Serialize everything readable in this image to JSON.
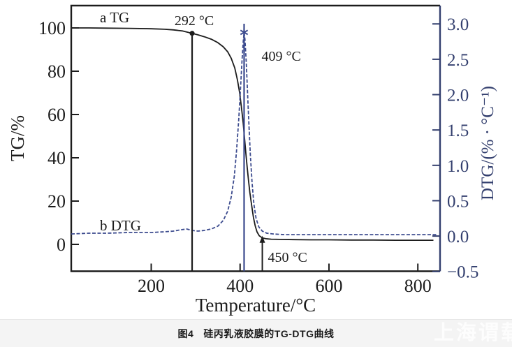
{
  "chart_data": {
    "type": "line",
    "title": "",
    "xlabel": "Temperature/°C",
    "ylabel_left": "TG/%",
    "ylabel_right": "DTG/(% · °C⁻¹)",
    "x_ticks": [
      200,
      400,
      600,
      800
    ],
    "y_left_ticks": [
      0,
      20,
      40,
      60,
      80,
      100
    ],
    "y_right_ticks": [
      -0.5,
      0.0,
      0.5,
      1.0,
      1.5,
      2.0,
      2.5,
      3.0
    ],
    "x_range": [
      20,
      850
    ],
    "y_left_range": [
      0,
      100
    ],
    "y_right_range": [
      -0.5,
      3.0
    ],
    "grid": false,
    "legend_position": "none",
    "series": [
      {
        "name": "a TG",
        "axis": "left",
        "color": "#1c1c1c",
        "dashed": false,
        "points": [
          [
            20,
            100
          ],
          [
            60,
            100
          ],
          [
            100,
            99.9
          ],
          [
            150,
            99.8
          ],
          [
            200,
            99.6
          ],
          [
            230,
            99.4
          ],
          [
            250,
            99.1
          ],
          [
            270,
            98.6
          ],
          [
            292,
            97.5
          ],
          [
            305,
            96.8
          ],
          [
            320,
            95.9
          ],
          [
            335,
            94.8
          ],
          [
            350,
            93.2
          ],
          [
            362,
            91.3
          ],
          [
            372,
            89
          ],
          [
            380,
            86
          ],
          [
            388,
            81.5
          ],
          [
            394,
            76
          ],
          [
            399,
            70
          ],
          [
            403,
            63.5
          ],
          [
            407,
            56
          ],
          [
            410,
            49
          ],
          [
            413,
            42
          ],
          [
            416,
            35.5
          ],
          [
            419,
            29.5
          ],
          [
            422,
            24
          ],
          [
            426,
            18
          ],
          [
            430,
            12.5
          ],
          [
            434,
            8.5
          ],
          [
            438,
            5.8
          ],
          [
            443,
            4
          ],
          [
            450,
            3
          ],
          [
            458,
            2.6
          ],
          [
            470,
            2.4
          ],
          [
            490,
            2.3
          ],
          [
            520,
            2.2
          ],
          [
            560,
            2.1
          ],
          [
            600,
            2.1
          ],
          [
            650,
            2
          ],
          [
            700,
            2
          ],
          [
            750,
            1.9
          ],
          [
            835,
            1.9
          ]
        ]
      },
      {
        "name": "b DTG",
        "axis": "right",
        "color": "#3c4b8e",
        "dashed": true,
        "points": [
          [
            20,
            0.03
          ],
          [
            60,
            0.04
          ],
          [
            100,
            0.04
          ],
          [
            150,
            0.05
          ],
          [
            200,
            0.05
          ],
          [
            230,
            0.06
          ],
          [
            250,
            0.07
          ],
          [
            268,
            0.09
          ],
          [
            280,
            0.1
          ],
          [
            292,
            0.08
          ],
          [
            305,
            0.07
          ],
          [
            320,
            0.08
          ],
          [
            335,
            0.1
          ],
          [
            350,
            0.14
          ],
          [
            362,
            0.22
          ],
          [
            372,
            0.35
          ],
          [
            380,
            0.55
          ],
          [
            387,
            0.85
          ],
          [
            392,
            1.2
          ],
          [
            397,
            1.65
          ],
          [
            401,
            2.1
          ],
          [
            404,
            2.45
          ],
          [
            407,
            2.75
          ],
          [
            409,
            2.88
          ],
          [
            411,
            2.78
          ],
          [
            414,
            2.45
          ],
          [
            417,
            2.0
          ],
          [
            420,
            1.55
          ],
          [
            423,
            1.15
          ],
          [
            427,
            0.75
          ],
          [
            431,
            0.45
          ],
          [
            436,
            0.25
          ],
          [
            442,
            0.13
          ],
          [
            450,
            0.07
          ],
          [
            460,
            0.04
          ],
          [
            475,
            0.03
          ],
          [
            500,
            0.02
          ],
          [
            550,
            0.02
          ],
          [
            600,
            0.02
          ],
          [
            700,
            0.02
          ],
          [
            845,
            0.02
          ]
        ]
      }
    ],
    "annotations": [
      {
        "id": "series-a-label",
        "text": "a TG"
      },
      {
        "id": "series-b-label",
        "text": "b DTG"
      },
      {
        "id": "t292",
        "text": "292 °C",
        "temp": 292,
        "marker": "dot"
      },
      {
        "id": "t409",
        "text": "409 °C",
        "temp": 409,
        "marker": "star"
      },
      {
        "id": "t450",
        "text": "450 °C",
        "temp": 450,
        "marker": "arrow"
      }
    ]
  },
  "caption": {
    "label": "图4",
    "title": "硅丙乳液胶膜的TG-DTG曲线"
  },
  "watermark": {
    "text": "上海谓载"
  },
  "colors": {
    "tg_curve": "#1c1c1c",
    "dtg_curve": "#3c4b8e",
    "right_axis": "#333f6e",
    "left_axis": "#1c1c1c",
    "caption_strip": "#f4f4f4",
    "watermark": "#fdfdfd"
  }
}
